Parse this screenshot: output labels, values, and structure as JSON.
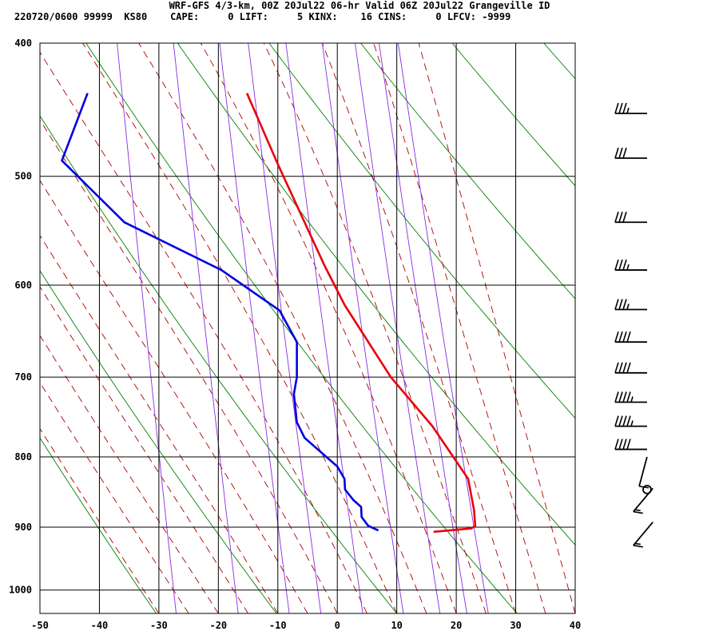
{
  "header": {
    "line1": "WRF-GFS 4/3-km, 00Z 20Jul22 06-hr Valid 06Z 20Jul22 Grangeville ID",
    "line2": "220720/0600 99999  KS80    CAPE:     0 LIFT:     5 KINX:    16 CINS:     0 LFCV: -9999"
  },
  "chart_data": {
    "type": "line",
    "title": "",
    "xlabel": "",
    "ylabel": "",
    "x_ticks": [
      -50,
      -40,
      -30,
      -20,
      -10,
      0,
      10,
      20,
      30,
      40
    ],
    "y_ticks": [
      400,
      500,
      600,
      700,
      800,
      900,
      1000
    ],
    "xlim": [
      -50,
      40
    ],
    "ylim": [
      1040,
      400
    ],
    "y_scale": "log",
    "grid": true,
    "series": [
      {
        "color": "#e8000b",
        "points": [
          [
            -15.2,
            435
          ],
          [
            -10,
            490
          ],
          [
            -2.2,
            580
          ],
          [
            1.2,
            620
          ],
          [
            9,
            700
          ],
          [
            16,
            760
          ],
          [
            22,
            830
          ],
          [
            23,
            875
          ],
          [
            23.2,
            898
          ],
          [
            22.5,
            902
          ],
          [
            16.2,
            907
          ]
        ]
      },
      {
        "color": "#0000e0",
        "points": [
          [
            -42,
            435
          ],
          [
            -46.3,
            487
          ],
          [
            -35.8,
            540
          ],
          [
            -19.5,
            585
          ],
          [
            -9.7,
            626
          ],
          [
            -6.8,
            660
          ],
          [
            -6.8,
            700
          ],
          [
            -7.3,
            720
          ],
          [
            -6.8,
            755
          ],
          [
            -5.5,
            775
          ],
          [
            0,
            813
          ],
          [
            1.2,
            830
          ],
          [
            1.3,
            845
          ],
          [
            2.7,
            860
          ],
          [
            4,
            870
          ],
          [
            4.1,
            885
          ],
          [
            5.2,
            898
          ],
          [
            6.9,
            905
          ]
        ]
      }
    ],
    "wind_barbs": [
      {
        "p": 450,
        "speed_kt": 35
      },
      {
        "p": 485,
        "speed_kt": 30
      },
      {
        "p": 540,
        "speed_kt": 30
      },
      {
        "p": 585,
        "speed_kt": 35
      },
      {
        "p": 625,
        "speed_kt": 35
      },
      {
        "p": 660,
        "speed_kt": 40
      },
      {
        "p": 695,
        "speed_kt": 40
      },
      {
        "p": 730,
        "speed_kt": 45
      },
      {
        "p": 760,
        "speed_kt": 45
      },
      {
        "p": 790,
        "speed_kt": 40
      },
      {
        "p": 820,
        "speed_kt": 10
      },
      {
        "p": 845,
        "speed_kt": 0
      },
      {
        "p": 860,
        "speed_kt": 15
      },
      {
        "p": 910,
        "speed_kt": 15
      }
    ],
    "colors": {
      "isotherm": "#000000",
      "dry_adiabat": "#008000",
      "moist_adiabat": "#b00000",
      "mixing_ratio": "#8a2be2"
    }
  }
}
